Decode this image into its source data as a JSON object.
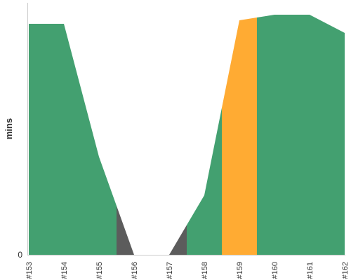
{
  "chart_data": {
    "type": "area",
    "x": [
      "#153",
      "#154",
      "#155",
      "#156",
      "#157",
      "#158",
      "#159",
      "#160",
      "#161",
      "#162"
    ],
    "ylabel": "mins",
    "yticks": [
      "0"
    ],
    "ylim": [
      0,
      36
    ],
    "grid": false,
    "legend": "none",
    "points": [
      {
        "x": 0,
        "y": 33
      },
      {
        "x": 1,
        "y": 33
      },
      {
        "x": 2,
        "y": 14
      },
      {
        "x": 3,
        "y": 0
      },
      {
        "x": 4,
        "y": 0
      },
      {
        "x": 5,
        "y": 8.5
      },
      {
        "x": 6,
        "y": 33.5
      },
      {
        "x": 7,
        "y": 34.3
      },
      {
        "x": 8,
        "y": 34.3
      },
      {
        "x": 9,
        "y": 31.7
      }
    ],
    "bands": [
      {
        "from": 0,
        "to": 2.5,
        "status": "success",
        "color": "#43a070"
      },
      {
        "from": 2.5,
        "to": 3,
        "status": "failed",
        "color": "#5c5c5c"
      },
      {
        "from": 3,
        "to": 4,
        "status": "none",
        "color": "#ffffff"
      },
      {
        "from": 4,
        "to": 4.5,
        "status": "failed",
        "color": "#5c5c5c"
      },
      {
        "from": 4.5,
        "to": 5.5,
        "status": "success",
        "color": "#43a070"
      },
      {
        "from": 5.5,
        "to": 6.5,
        "status": "unstable",
        "color": "#ffab33"
      },
      {
        "from": 6.5,
        "to": 9,
        "status": "success",
        "color": "#43a070"
      }
    ]
  }
}
